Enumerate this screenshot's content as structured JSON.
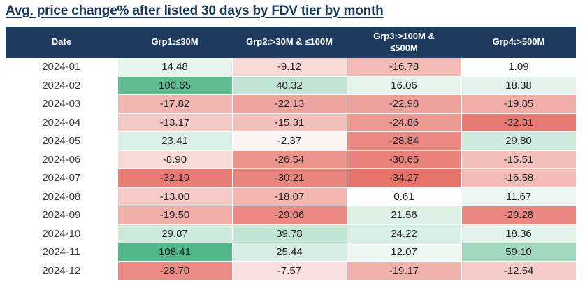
{
  "page": {
    "title": "Avg. price change% after listed 30 days by FDV tier by month"
  },
  "chart_data": {
    "type": "heatmap",
    "title": "Avg. price change% after listed 30 days by FDV tier by month",
    "columns": [
      "Date",
      "Grp1:≤30M",
      "Grp2:>30M & ≤100M",
      "Grp3:>100M & ≤500M",
      "Grp4:>500M"
    ],
    "rows": [
      {
        "date": "2024-01",
        "values": [
          14.48,
          -9.12,
          -16.78,
          1.09
        ],
        "labels": [
          "14.48",
          "-9.12",
          "-16.78",
          "1.09"
        ]
      },
      {
        "date": "2024-02",
        "values": [
          100.65,
          40.32,
          16.06,
          18.38
        ],
        "labels": [
          "100.65",
          "40.32",
          "16.06",
          "18.38"
        ]
      },
      {
        "date": "2024-03",
        "values": [
          -17.82,
          -22.13,
          -22.98,
          -19.85
        ],
        "labels": [
          "-17.82",
          "-22.13",
          "-22.98",
          "-19.85"
        ]
      },
      {
        "date": "2024-04",
        "values": [
          -13.17,
          -15.31,
          -24.86,
          -32.31
        ],
        "labels": [
          "-13.17",
          "-15.31",
          "-24.86",
          "-32.31"
        ]
      },
      {
        "date": "2024-05",
        "values": [
          23.41,
          -2.37,
          -28.84,
          29.8
        ],
        "labels": [
          "23.41",
          "-2.37",
          "-28.84",
          "29.80"
        ]
      },
      {
        "date": "2024-06",
        "values": [
          -8.9,
          -26.54,
          -30.65,
          -15.51
        ],
        "labels": [
          "-8.90",
          "-26.54",
          "-30.65",
          "-15.51"
        ]
      },
      {
        "date": "2024-07",
        "values": [
          -32.19,
          -30.21,
          -34.27,
          -16.58
        ],
        "labels": [
          "-32.19",
          "-30.21",
          "-34.27",
          "-16.58"
        ]
      },
      {
        "date": "2024-08",
        "values": [
          -13.0,
          -18.07,
          0.61,
          11.67
        ],
        "labels": [
          "-13.00",
          "-18.07",
          "0.61",
          "11.67"
        ]
      },
      {
        "date": "2024-09",
        "values": [
          -19.5,
          -29.06,
          21.56,
          -29.28
        ],
        "labels": [
          "-19.50",
          "-29.06",
          "21.56",
          "-29.28"
        ]
      },
      {
        "date": "2024-10",
        "values": [
          29.87,
          39.78,
          24.22,
          18.36
        ],
        "labels": [
          "29.87",
          "39.78",
          "24.22",
          "18.36"
        ]
      },
      {
        "date": "2024-11",
        "values": [
          108.41,
          25.44,
          12.07,
          59.1
        ],
        "labels": [
          "108.41",
          "25.44",
          "12.07",
          "59.10"
        ]
      },
      {
        "date": "2024-12",
        "values": [
          -28.7,
          -7.57,
          -19.17,
          -12.54
        ],
        "labels": [
          "-28.70",
          "-7.57",
          "-19.17",
          "-12.54"
        ]
      }
    ],
    "color_scale": {
      "min": -34.27,
      "max": 108.41,
      "negative_color": "#e6736a",
      "neutral_color": "#ffffff",
      "positive_color": "#52b788"
    },
    "legend": "none",
    "grid": "white 1px separators"
  },
  "colors": {
    "header_bg": "#1e3a5f",
    "header_text": "#ffffff",
    "title_text": "#17375e",
    "date_text": "#3c3c3c",
    "value_text": "#212121",
    "page_bg": "#ffffff"
  }
}
